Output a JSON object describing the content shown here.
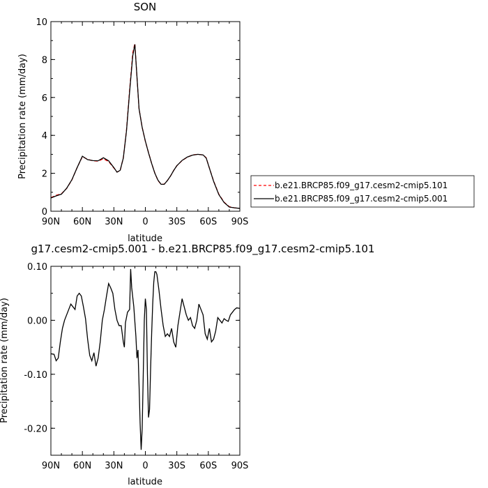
{
  "chart_data": [
    {
      "type": "line",
      "title": "SON",
      "xlabel": "latitude",
      "ylabel": "Precipitation rate (mm/day)",
      "xlim": [
        90,
        -90
      ],
      "ylim": [
        0,
        10
      ],
      "xticks": [
        90,
        60,
        30,
        0,
        -30,
        -60,
        -90
      ],
      "xtick_labels": [
        "90N",
        "60N",
        "30N",
        "0",
        "30S",
        "60S",
        "90S"
      ],
      "yticks": [
        0,
        2,
        4,
        6,
        8,
        10
      ],
      "ytick_labels": [
        "0",
        "2",
        "4",
        "6",
        "8",
        "10"
      ],
      "legend_position": "right",
      "series": [
        {
          "name": "b.e21.BRCP85.f09_g17.cesm2-cmip5.101",
          "color": "#ff0000",
          "dash": "dashed",
          "x": [
            90,
            85,
            80,
            75,
            70,
            65,
            60,
            55,
            50,
            45,
            40,
            35,
            30,
            27,
            24,
            21,
            18,
            15,
            12,
            10,
            8,
            6,
            3,
            0,
            -3,
            -6,
            -9,
            -12,
            -15,
            -18,
            -21,
            -24,
            -27,
            -30,
            -35,
            -40,
            -45,
            -50,
            -55,
            -58,
            -60,
            -65,
            -70,
            -75,
            -80,
            -85,
            -90
          ],
          "y": [
            0.72,
            0.84,
            0.92,
            1.2,
            1.65,
            2.3,
            2.88,
            2.74,
            2.66,
            2.64,
            2.77,
            2.62,
            2.28,
            2.07,
            2.14,
            2.82,
            4.27,
            6.4,
            8.35,
            8.85,
            7.05,
            5.4,
            4.42,
            3.68,
            3.1,
            2.52,
            2.02,
            1.62,
            1.42,
            1.43,
            1.62,
            1.86,
            2.15,
            2.4,
            2.67,
            2.85,
            2.97,
            3.0,
            2.97,
            2.82,
            2.45,
            1.6,
            0.9,
            0.48,
            0.24,
            0.18,
            0.15
          ]
        },
        {
          "name": "b.e21.BRCP85.f09_g17.cesm2-cmip5.001",
          "color": "#000000",
          "dash": "solid",
          "x": [
            90,
            85,
            80,
            75,
            70,
            65,
            60,
            55,
            50,
            45,
            40,
            35,
            30,
            27,
            24,
            21,
            18,
            15,
            12,
            10,
            8,
            6,
            3,
            0,
            -3,
            -6,
            -9,
            -12,
            -15,
            -18,
            -21,
            -24,
            -27,
            -30,
            -35,
            -40,
            -45,
            -50,
            -55,
            -58,
            -60,
            -65,
            -70,
            -75,
            -80,
            -85,
            -90
          ],
          "y": [
            0.7,
            0.81,
            0.9,
            1.21,
            1.66,
            2.3,
            2.9,
            2.72,
            2.67,
            2.66,
            2.82,
            2.66,
            2.3,
            2.06,
            2.16,
            2.8,
            4.22,
            6.3,
            8.2,
            8.8,
            7.1,
            5.4,
            4.41,
            3.7,
            3.08,
            2.52,
            2.01,
            1.64,
            1.42,
            1.42,
            1.62,
            1.86,
            2.15,
            2.4,
            2.68,
            2.86,
            2.96,
            3.0,
            2.97,
            2.8,
            2.45,
            1.58,
            0.88,
            0.46,
            0.22,
            0.18,
            0.15
          ]
        }
      ]
    },
    {
      "type": "line",
      "title": "g17.cesm2-cmip5.001 - b.e21.BRCP85.f09_g17.cesm2-cmip5.101",
      "xlabel": "latitude",
      "ylabel": "Precipitation rate (mm/day)",
      "xlim": [
        90,
        -90
      ],
      "ylim": [
        -0.25,
        0.1
      ],
      "xticks": [
        90,
        60,
        30,
        0,
        -30,
        -60,
        -90
      ],
      "xtick_labels": [
        "90N",
        "60N",
        "30N",
        "0",
        "30S",
        "60S",
        "90S"
      ],
      "yticks": [
        0.1,
        0.0,
        -0.1,
        -0.2
      ],
      "ytick_labels": [
        "0.10",
        "0.00",
        "-0.10",
        "-0.20"
      ],
      "series": [
        {
          "color": "#000000",
          "x": [
            90,
            87,
            85,
            83,
            81,
            79,
            77,
            75,
            73,
            71,
            69,
            67,
            65,
            63,
            61,
            59,
            57,
            55,
            53,
            51,
            49,
            47,
            45,
            43,
            41,
            39,
            37,
            35,
            33,
            31,
            29,
            27,
            25,
            23,
            21,
            20,
            19,
            17,
            15,
            14,
            13,
            11,
            9,
            8,
            7,
            6,
            5,
            4,
            3,
            2,
            1,
            0,
            -1,
            -2,
            -3,
            -4,
            -5,
            -6,
            -7,
            -8,
            -9,
            -10,
            -11,
            -13,
            -15,
            -17,
            -19,
            -21,
            -23,
            -25,
            -27,
            -29,
            -31,
            -33,
            -35,
            -37,
            -39,
            -41,
            -43,
            -45,
            -47,
            -49,
            -51,
            -53,
            -55,
            -57,
            -59,
            -61,
            -63,
            -65,
            -67,
            -69,
            -71,
            -73,
            -75,
            -77,
            -79,
            -81,
            -83,
            -85,
            -87,
            -90
          ],
          "y": [
            -0.062,
            -0.063,
            -0.075,
            -0.07,
            -0.04,
            -0.015,
            0.0,
            0.01,
            0.02,
            0.03,
            0.025,
            0.02,
            0.045,
            0.05,
            0.045,
            0.025,
            0.003,
            -0.035,
            -0.065,
            -0.075,
            -0.06,
            -0.085,
            -0.07,
            -0.04,
            0.0,
            0.02,
            0.045,
            0.068,
            0.06,
            0.05,
            0.02,
            0.0,
            -0.01,
            -0.01,
            -0.04,
            -0.05,
            -0.005,
            0.015,
            0.02,
            0.095,
            0.06,
            0.025,
            -0.03,
            -0.07,
            -0.055,
            -0.12,
            -0.19,
            -0.24,
            -0.2,
            -0.1,
            0.0,
            0.04,
            0.02,
            -0.1,
            -0.18,
            -0.165,
            -0.09,
            -0.025,
            0.03,
            0.07,
            0.09,
            0.09,
            0.085,
            0.055,
            0.02,
            -0.01,
            -0.03,
            -0.025,
            -0.03,
            -0.015,
            -0.04,
            -0.05,
            -0.01,
            0.015,
            0.04,
            0.025,
            0.01,
            0.0,
            0.005,
            -0.01,
            -0.015,
            0.0,
            0.03,
            0.02,
            0.01,
            -0.025,
            -0.035,
            -0.015,
            -0.04,
            -0.035,
            -0.02,
            0.005,
            0.0,
            -0.005,
            0.003,
            0.0,
            -0.002,
            0.01,
            0.015,
            0.02,
            0.023,
            0.022
          ]
        }
      ]
    }
  ]
}
